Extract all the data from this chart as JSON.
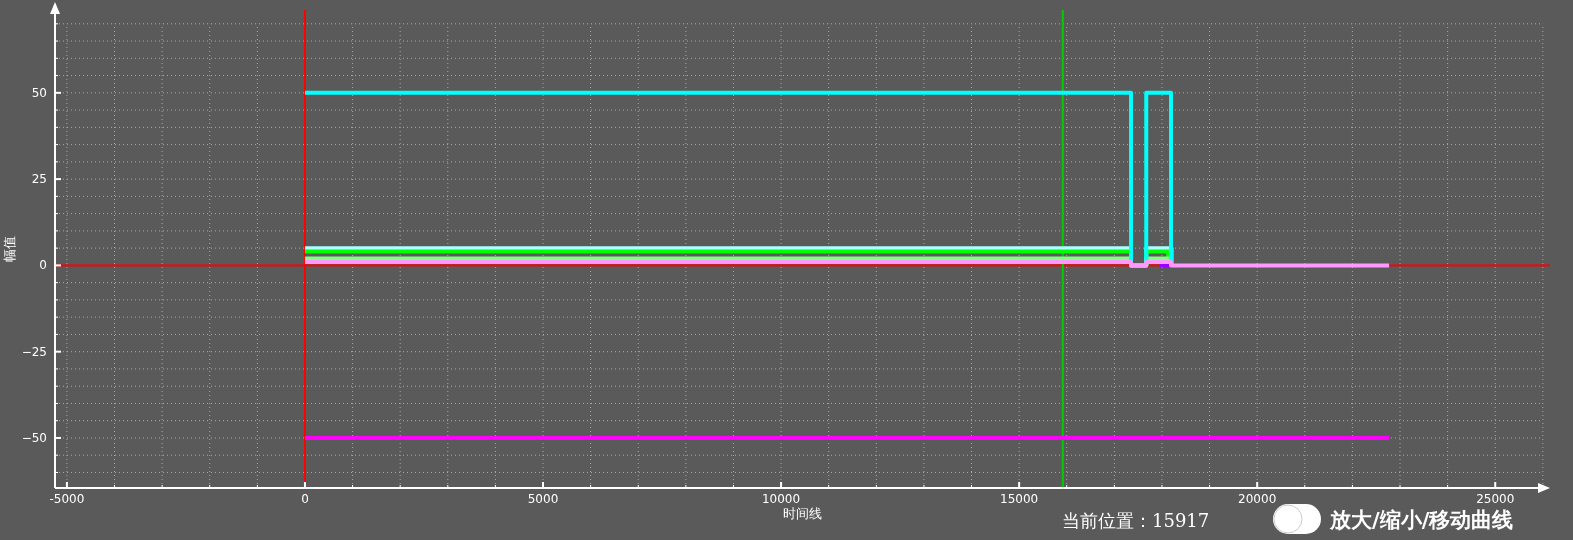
{
  "chart_data": {
    "type": "step",
    "xlabel": "时间线",
    "ylabel": "幅值",
    "xlim": [
      -5250,
      26150
    ],
    "ylim": [
      -64.5,
      74
    ],
    "xticks": [
      -5000,
      {
        "value": -4000,
        "label": null
      },
      {
        "value": -3000,
        "label": null
      },
      {
        "value": -2000,
        "label": null
      },
      {
        "value": -1000,
        "label": null
      },
      0,
      {
        "value": 1000,
        "label": null
      },
      {
        "value": 2000,
        "label": null
      },
      {
        "value": 3000,
        "label": null
      },
      {
        "value": 4000,
        "label": null
      },
      5000,
      {
        "value": 6000,
        "label": null
      },
      {
        "value": 7000,
        "label": null
      },
      {
        "value": 8000,
        "label": null
      },
      {
        "value": 9000,
        "label": null
      },
      10000,
      {
        "value": 11000,
        "label": null
      },
      {
        "value": 12000,
        "label": null
      },
      {
        "value": 13000,
        "label": null
      },
      {
        "value": 14000,
        "label": null
      },
      15000,
      {
        "value": 16000,
        "label": null
      },
      {
        "value": 17000,
        "label": null
      },
      {
        "value": 18000,
        "label": null
      },
      {
        "value": 19000,
        "label": null
      },
      20000,
      {
        "value": 21000,
        "label": null
      },
      {
        "value": 22000,
        "label": null
      },
      {
        "value": 23000,
        "label": null
      },
      {
        "value": 24000,
        "label": null
      },
      25000,
      {
        "value": 26000,
        "label": null
      }
    ],
    "yticks": [
      {
        "value": -60,
        "label": null
      },
      {
        "value": -55,
        "label": null
      },
      -50,
      {
        "value": -45,
        "label": null
      },
      {
        "value": -40,
        "label": null
      },
      {
        "value": -35,
        "label": null
      },
      {
        "value": -30,
        "label": null
      },
      -25,
      {
        "value": -20,
        "label": null
      },
      {
        "value": -15,
        "label": null
      },
      {
        "value": -10,
        "label": null
      },
      {
        "value": -5,
        "label": null
      },
      0,
      {
        "value": 5,
        "label": null
      },
      {
        "value": 10,
        "label": null
      },
      {
        "value": 15,
        "label": null
      },
      {
        "value": 20,
        "label": null
      },
      25,
      {
        "value": 30,
        "label": null
      },
      {
        "value": 35,
        "label": null
      },
      {
        "value": 40,
        "label": null
      },
      {
        "value": 45,
        "label": null
      },
      50,
      {
        "value": 55,
        "label": null
      },
      {
        "value": 60,
        "label": null
      },
      {
        "value": 65,
        "label": null
      },
      {
        "value": 70,
        "label": null
      }
    ],
    "grid": true,
    "line_style": "solid",
    "series": [
      {
        "color": "#aaffff",
        "x": [
          0,
          17350,
          17670,
          18200
        ],
        "values": [
          5,
          0,
          5,
          0
        ]
      },
      {
        "color": "#00ff00",
        "x": [
          0,
          17350,
          17670,
          18130
        ],
        "values": [
          4,
          0,
          4,
          0
        ]
      },
      {
        "color": "#80ff80",
        "x": [
          0,
          17350,
          17670,
          18130
        ],
        "values": [
          2,
          0,
          2,
          0
        ]
      },
      {
        "color": "#00ffff",
        "x": [
          0,
          17350,
          17670,
          18190
        ],
        "values": [
          50,
          0,
          50,
          0
        ]
      },
      {
        "color": "#9900ff",
        "x": [
          17950,
          18190
        ],
        "values": [
          0,
          0
        ]
      },
      {
        "color": "#ff99ff",
        "x": [
          0,
          17350,
          17670,
          18190,
          22770
        ],
        "values": [
          1,
          0,
          1,
          0,
          0
        ]
      },
      {
        "color": "#ff00ff",
        "x": [
          0,
          22770
        ],
        "values": [
          -50,
          -50
        ]
      }
    ],
    "ref_lines": [
      {
        "axis": "x",
        "value": 0,
        "color": "#ff0000"
      },
      {
        "axis": "y",
        "value": 0,
        "color": "#ff0000"
      },
      {
        "axis": "x",
        "value": 15917,
        "color": "#00cc00"
      }
    ],
    "annotations": [
      "当前位置：15917",
      "放大/缩小/移动曲线"
    ]
  }
}
